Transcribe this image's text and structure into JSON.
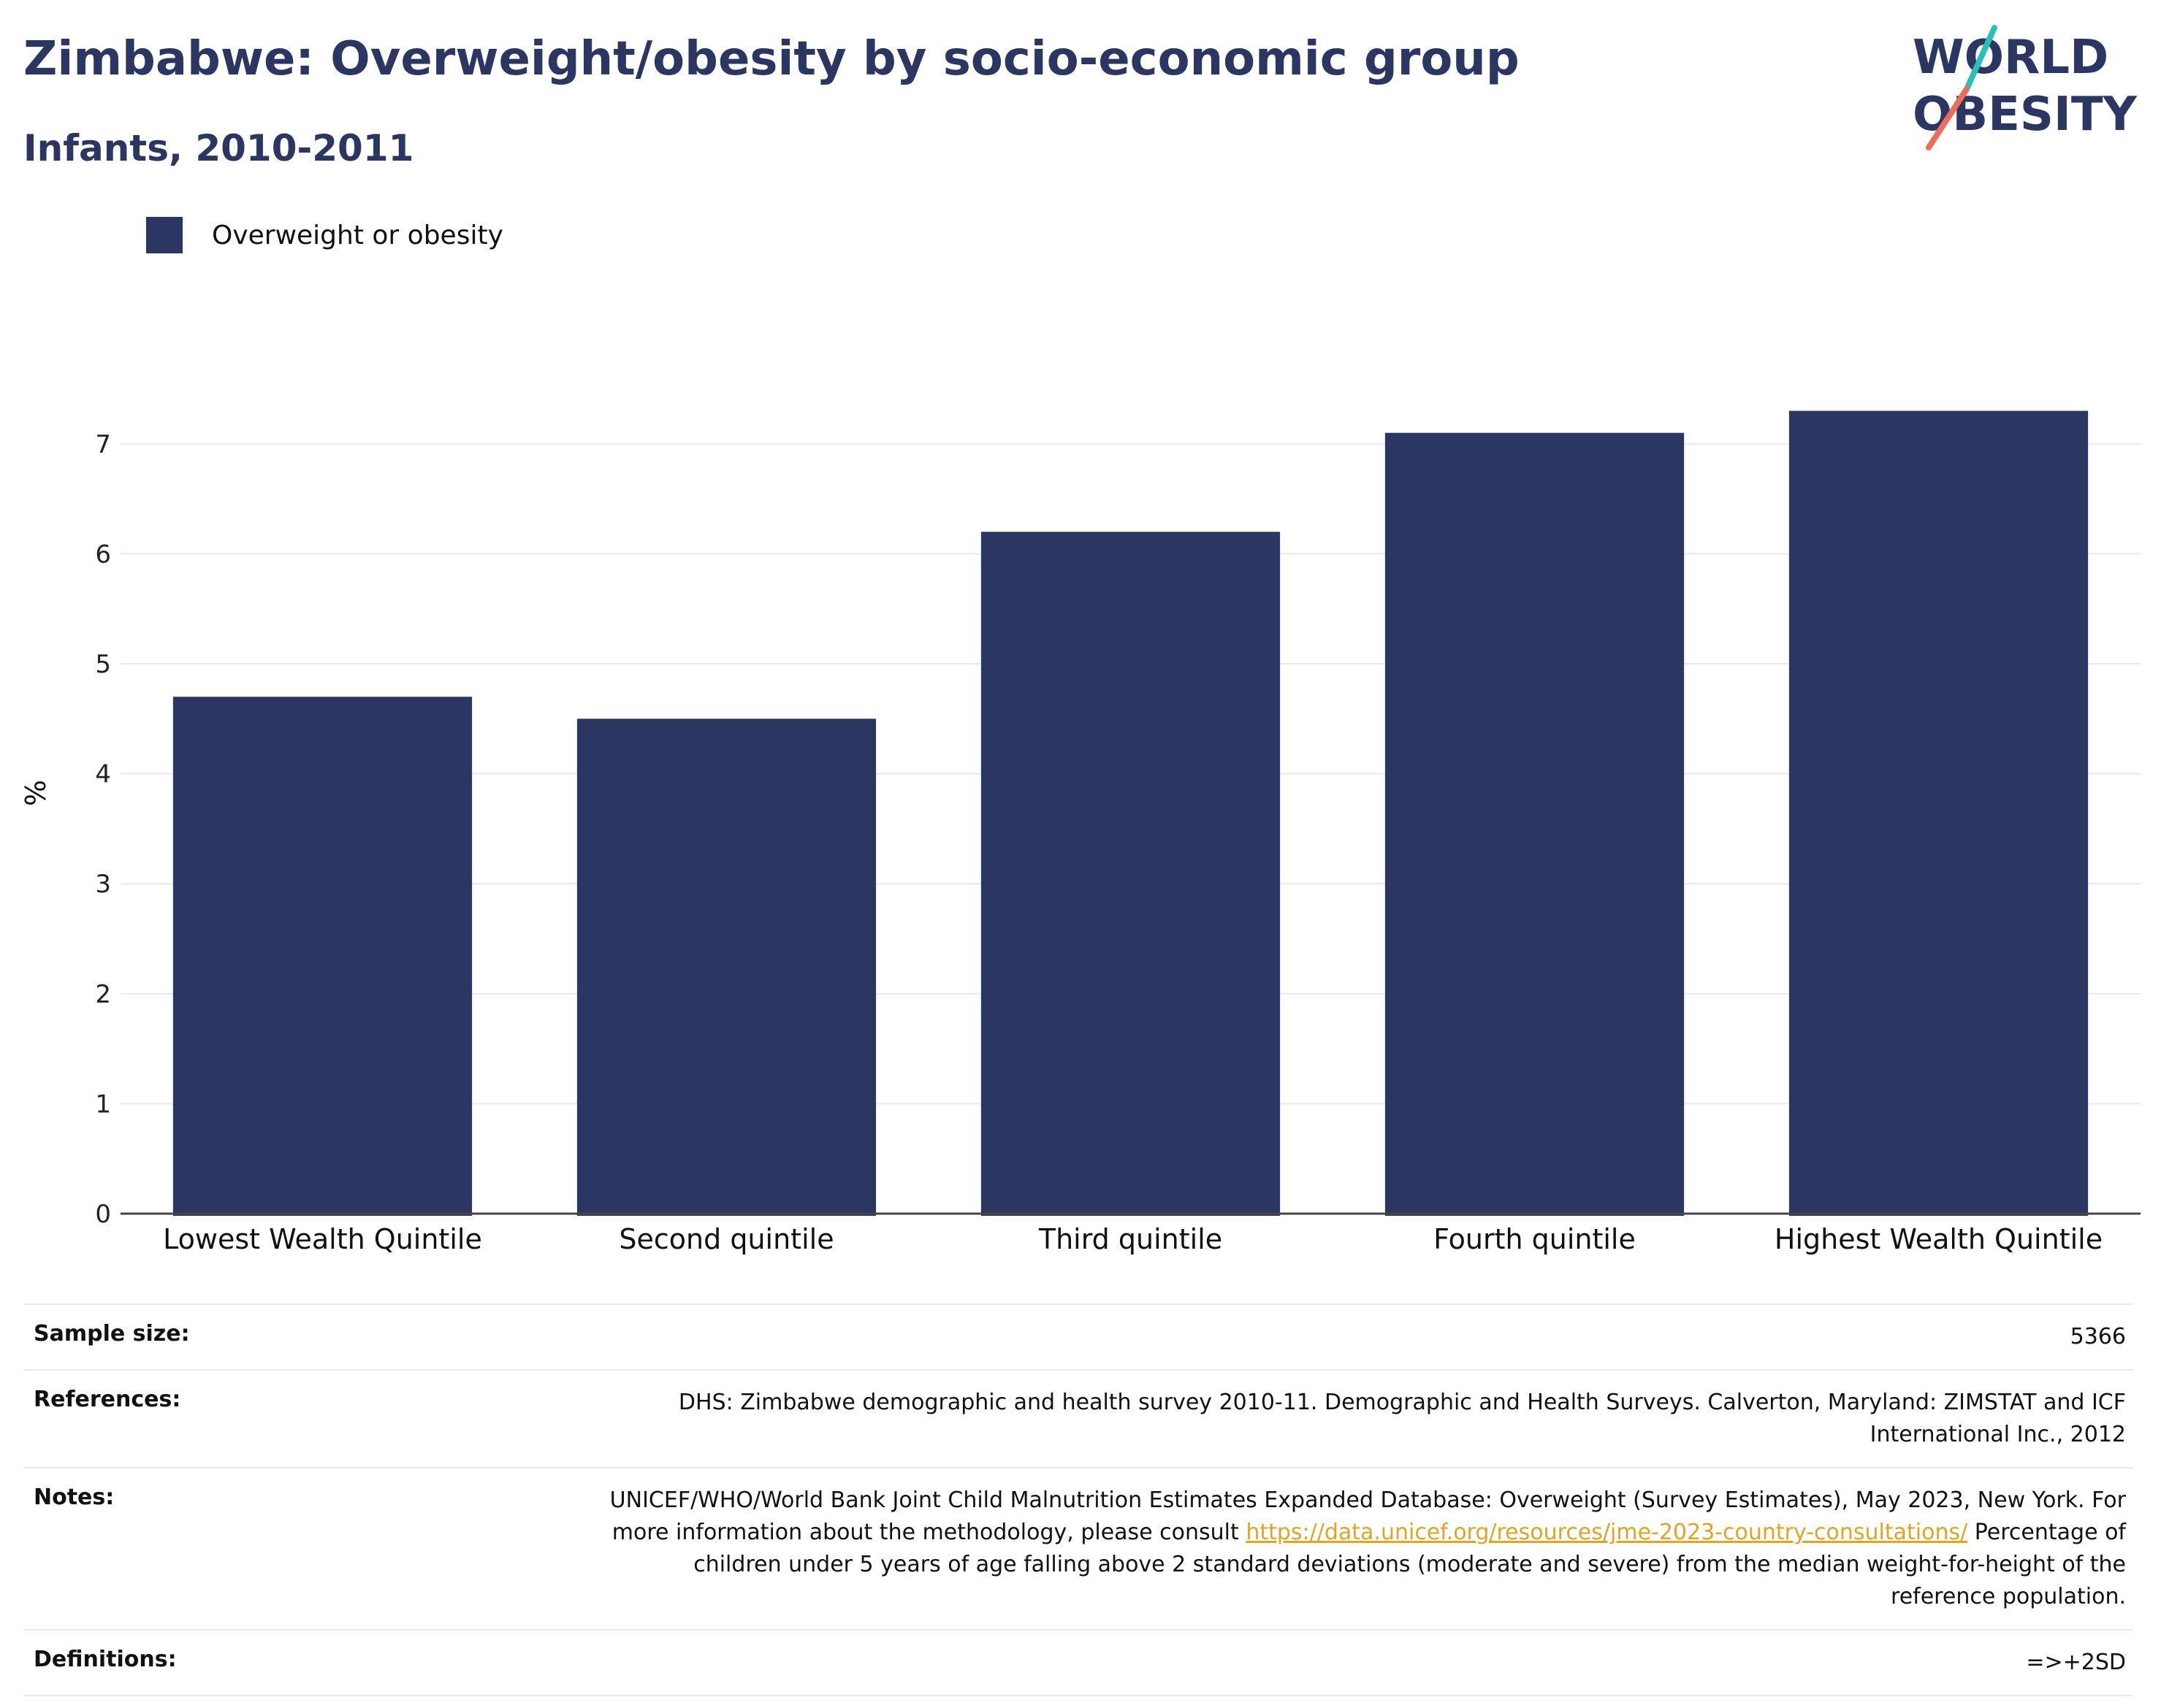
{
  "header": {
    "title": "Zimbabwe: Overweight/obesity by socio-economic group",
    "subtitle": "Infants, 2010-2011"
  },
  "logo": {
    "line1": "WORLD",
    "line2": "OBESITY",
    "text_color": "#2b3663",
    "accent_teal": "#2bbfb5",
    "accent_coral": "#ec6c5c"
  },
  "legend": {
    "label": "Overweight or obesity",
    "color": "#2b3663"
  },
  "chart_data": {
    "type": "bar",
    "categories": [
      "Lowest Wealth Quintile",
      "Second quintile",
      "Third quintile",
      "Fourth quintile",
      "Highest Wealth Quintile"
    ],
    "series": [
      {
        "name": "Overweight or obesity",
        "values": [
          4.7,
          4.5,
          6.2,
          7.1,
          7.3
        ],
        "color": "#2b3663"
      }
    ],
    "ylabel": "%",
    "ylim": [
      0,
      7.5
    ],
    "yticks": [
      0,
      1,
      2,
      3,
      4,
      5,
      6,
      7
    ],
    "grid": true,
    "legend_position": "top-left"
  },
  "info": {
    "sample_size_label": "Sample size:",
    "sample_size_value": "5366",
    "references_label": "References:",
    "references_value": "DHS: Zimbabwe demographic and health survey 2010-11. Demographic and Health Surveys. Calverton, Maryland: ZIMSTAT and ICF International Inc., 2012",
    "notes_label": "Notes:",
    "notes_text_before": "UNICEF/WHO/World Bank Joint Child Malnutrition Estimates Expanded Database: Overweight (Survey Estimates), May 2023, New York. For more information about the methodology, please consult ",
    "notes_link": "https://data.unicef.org/resources/jme-2023-country-consultations/",
    "notes_text_after": " Percentage of children under 5 years of age falling above 2 standard deviations (moderate and severe) from the median weight-for-height of the reference population.",
    "definitions_label": "Definitions:",
    "definitions_value": "=>+2SD"
  }
}
